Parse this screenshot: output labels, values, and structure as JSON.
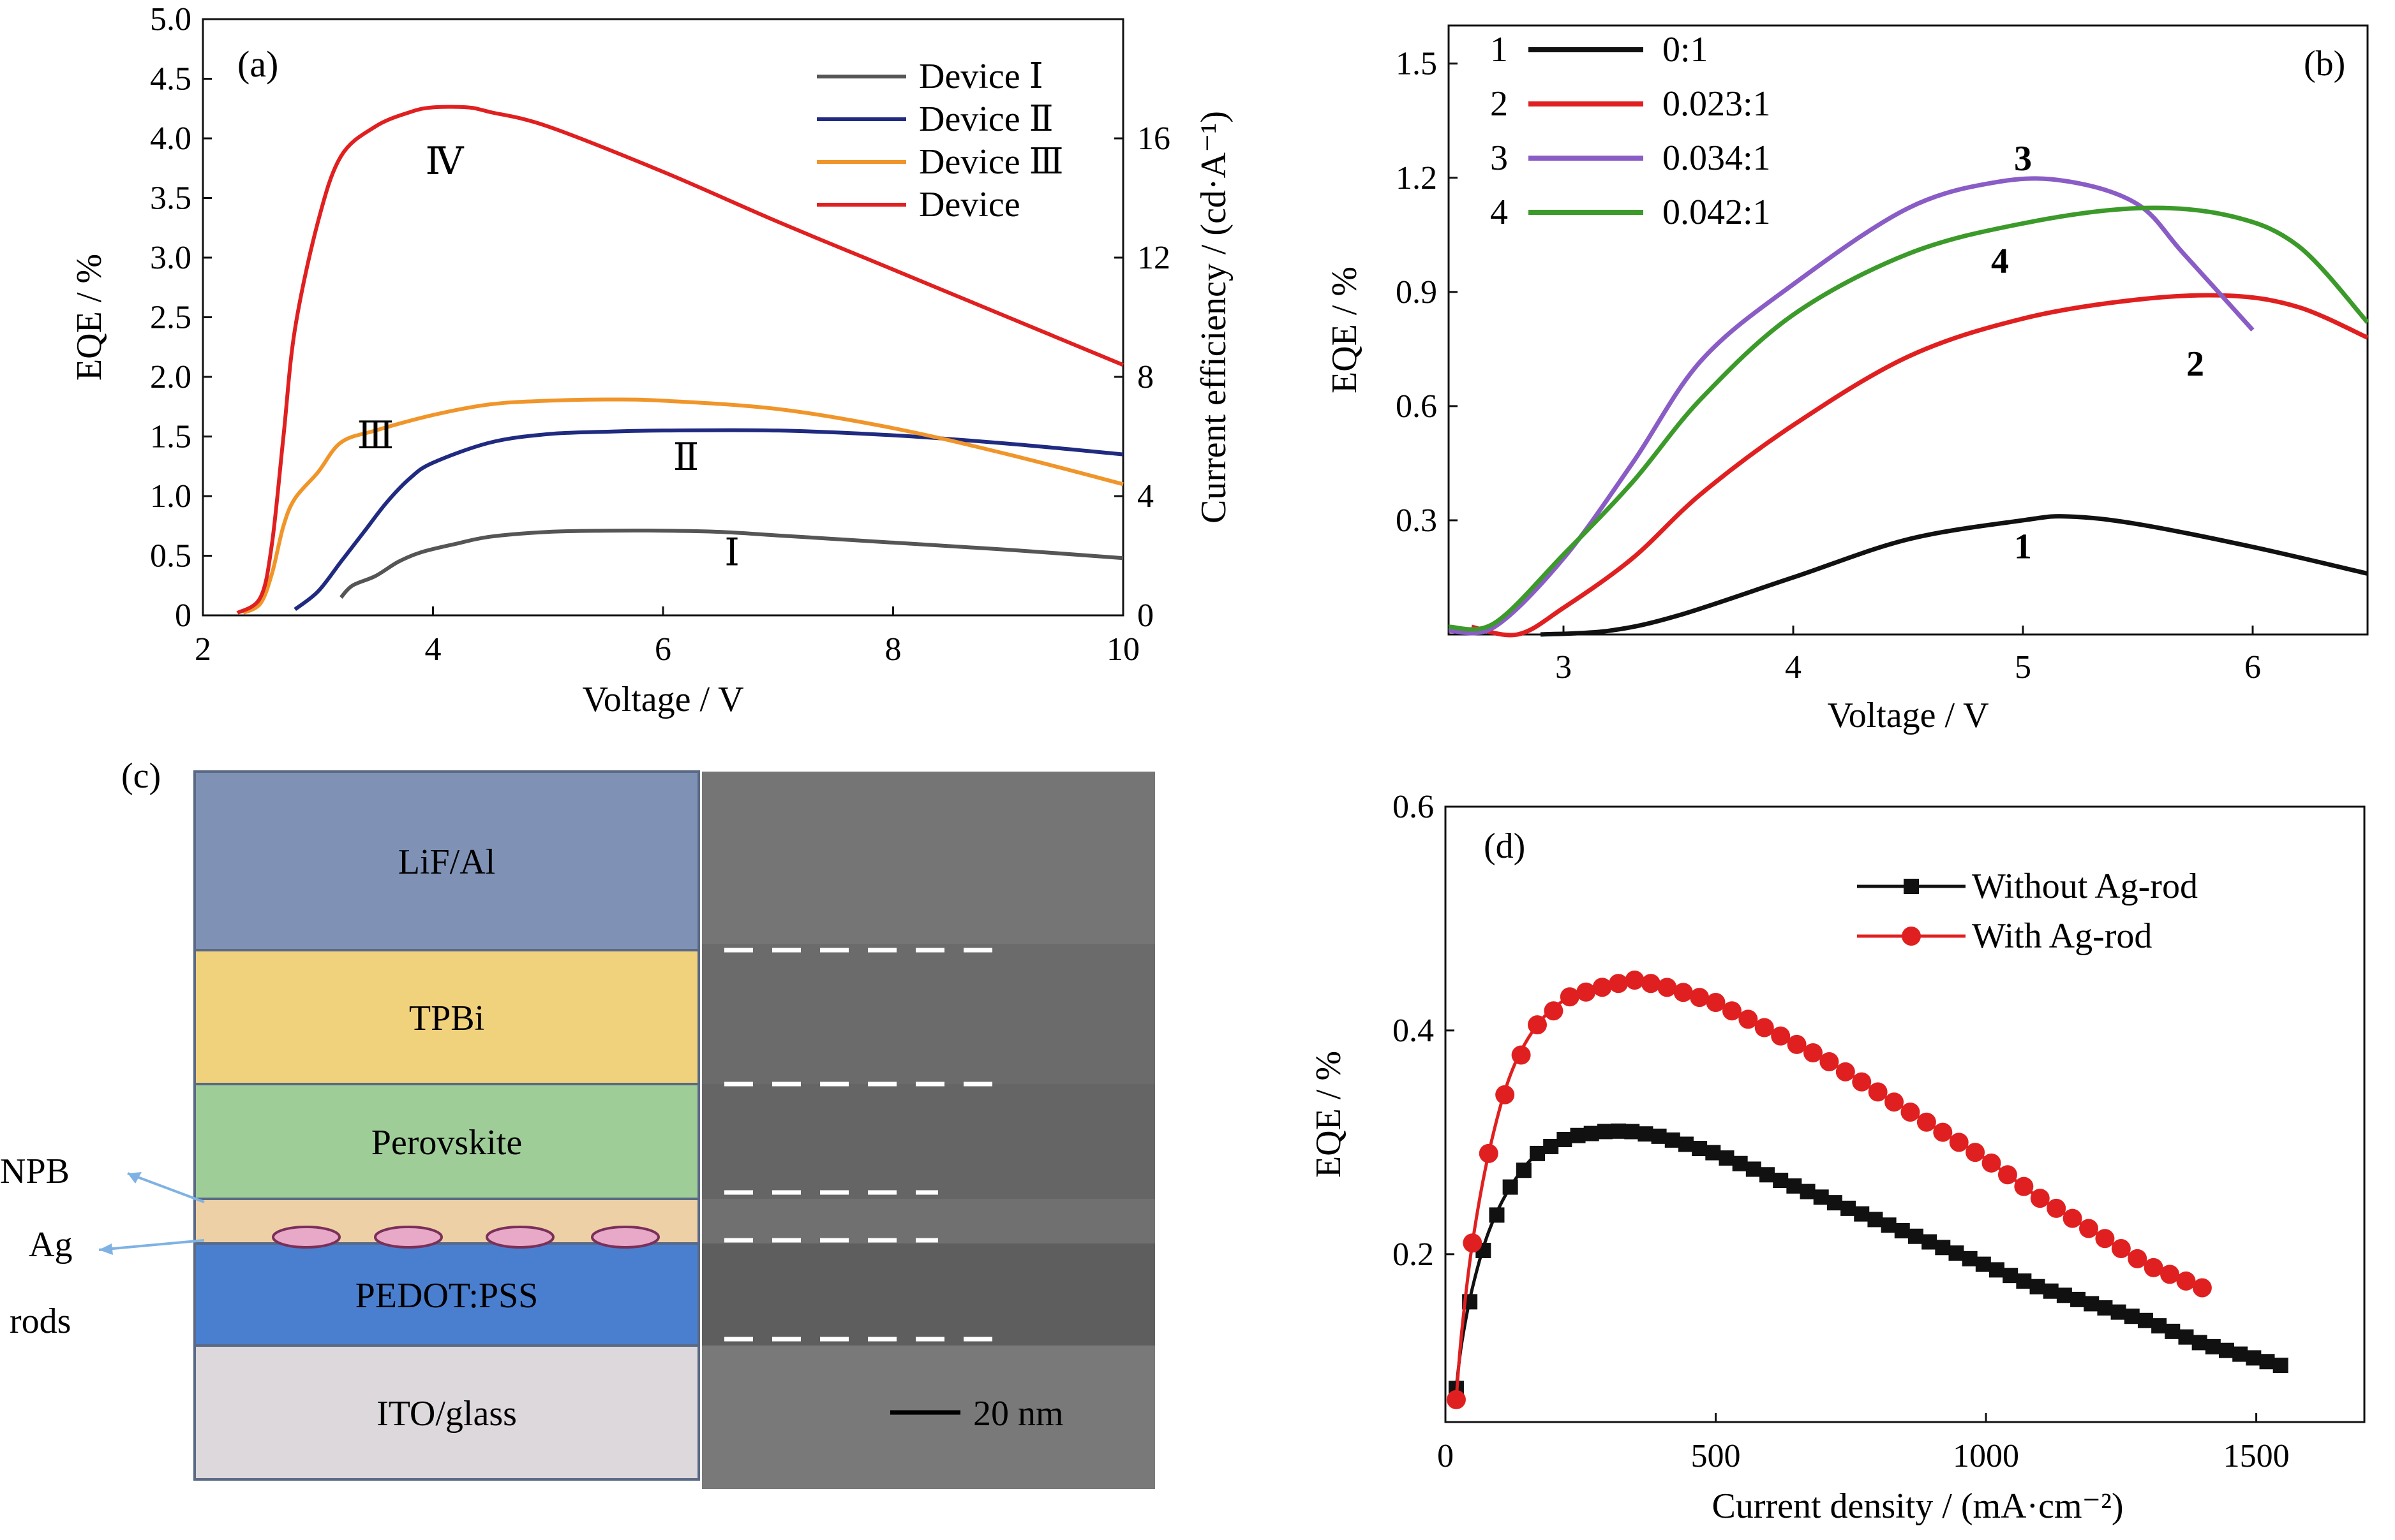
{
  "chart_data": [
    {
      "panel": "(a)",
      "type": "line",
      "xlabel": "Voltage / V",
      "ylabel": "EQE / %",
      "y2label": "Current efficiency / (cd·A⁻¹)",
      "xlim": [
        2,
        10
      ],
      "ylim": [
        0,
        5.0
      ],
      "y2lim": [
        0,
        20
      ],
      "xticks": [
        2,
        4,
        6,
        8,
        10
      ],
      "yticks": [
        "0",
        "0.5",
        "1.0",
        "1.5",
        "2.0",
        "2.5",
        "3.0",
        "3.5",
        "4.0",
        "4.5",
        "5.0"
      ],
      "y2ticks": [
        0,
        4,
        8,
        12,
        16
      ],
      "legend_position": "top-right",
      "series": [
        {
          "name": "Device Ⅰ",
          "label": "Ⅰ",
          "color": "#555555",
          "x": [
            3.2,
            3.3,
            3.5,
            3.7,
            3.9,
            4.2,
            4.5,
            5,
            5.5,
            6,
            6.5,
            7,
            8,
            9,
            10
          ],
          "y": [
            0.15,
            0.25,
            0.33,
            0.45,
            0.53,
            0.6,
            0.66,
            0.7,
            0.71,
            0.71,
            0.7,
            0.67,
            0.61,
            0.55,
            0.48
          ]
        },
        {
          "name": "Device Ⅱ",
          "label": "Ⅱ",
          "color": "#1f2a80",
          "x": [
            2.8,
            3.0,
            3.2,
            3.4,
            3.6,
            3.8,
            4.0,
            4.5,
            5,
            5.5,
            6,
            7,
            8,
            9,
            10
          ],
          "y": [
            0.05,
            0.2,
            0.45,
            0.7,
            0.95,
            1.15,
            1.28,
            1.45,
            1.52,
            1.54,
            1.55,
            1.55,
            1.51,
            1.44,
            1.35
          ]
        },
        {
          "name": "Device Ⅲ",
          "label": "Ⅲ",
          "color": "#f0952a",
          "x": [
            2.35,
            2.5,
            2.6,
            2.7,
            2.8,
            3.0,
            3.2,
            3.5,
            4,
            4.5,
            5,
            5.5,
            6,
            7,
            8,
            9,
            10
          ],
          "y": [
            0.02,
            0.1,
            0.35,
            0.75,
            0.98,
            1.2,
            1.45,
            1.55,
            1.68,
            1.77,
            1.8,
            1.81,
            1.8,
            1.73,
            1.57,
            1.35,
            1.1
          ]
        },
        {
          "name": "Device",
          "label": "Ⅳ",
          "color": "#e02020",
          "x": [
            2.3,
            2.5,
            2.6,
            2.7,
            2.8,
            3.0,
            3.2,
            3.5,
            3.8,
            4.0,
            4.3,
            4.5,
            5,
            6,
            7,
            8,
            9,
            10
          ],
          "y": [
            0.02,
            0.15,
            0.6,
            1.5,
            2.4,
            3.3,
            3.85,
            4.1,
            4.22,
            4.26,
            4.26,
            4.22,
            4.1,
            3.72,
            3.3,
            2.9,
            2.5,
            2.1
          ]
        }
      ]
    },
    {
      "panel": "(b)",
      "type": "line",
      "xlabel": "Voltage / V",
      "ylabel": "EQE / %",
      "xlim": [
        2.5,
        6.5
      ],
      "ylim": [
        0,
        1.6
      ],
      "xticks": [
        3,
        4,
        5,
        6
      ],
      "yticks": [
        "0.3",
        "0.6",
        "0.9",
        "1.2",
        "1.5"
      ],
      "legend_position": "top-left",
      "series": [
        {
          "name": "0:1",
          "num": "1",
          "color": "#111111",
          "x": [
            2.9,
            3.2,
            3.5,
            4.0,
            4.5,
            5.0,
            5.2,
            5.5,
            6.0,
            6.5
          ],
          "y": [
            0,
            0.01,
            0.05,
            0.15,
            0.25,
            0.3,
            0.31,
            0.29,
            0.23,
            0.16
          ]
        },
        {
          "name": "0.023:1",
          "num": "2",
          "color": "#e02020",
          "x": [
            2.6,
            2.8,
            3.0,
            3.3,
            3.6,
            4.0,
            4.5,
            5.0,
            5.5,
            5.9,
            6.2,
            6.5
          ],
          "y": [
            0.02,
            0.0,
            0.07,
            0.2,
            0.37,
            0.55,
            0.73,
            0.83,
            0.88,
            0.89,
            0.86,
            0.78
          ]
        },
        {
          "name": "0.034:1",
          "num": "3",
          "color": "#8a5cc6",
          "x": [
            2.5,
            2.7,
            3.0,
            3.3,
            3.6,
            4.0,
            4.5,
            4.9,
            5.2,
            5.5,
            5.7,
            6.0
          ],
          "y": [
            0.01,
            0.02,
            0.2,
            0.45,
            0.72,
            0.92,
            1.12,
            1.19,
            1.19,
            1.13,
            1.0,
            0.8
          ]
        },
        {
          "name": "0.042:1",
          "num": "4",
          "color": "#3c9a2a",
          "x": [
            2.5,
            2.7,
            3.0,
            3.3,
            3.6,
            4.0,
            4.5,
            5.0,
            5.5,
            5.9,
            6.2,
            6.5
          ],
          "y": [
            0.02,
            0.03,
            0.21,
            0.4,
            0.62,
            0.84,
            1.0,
            1.08,
            1.12,
            1.1,
            1.02,
            0.82
          ]
        }
      ]
    },
    {
      "panel": "(d)",
      "type": "line",
      "xlabel": "Current density / (mA·cm⁻²)",
      "ylabel": "EQE / %",
      "xlim": [
        0,
        1700
      ],
      "ylim": [
        0.05,
        0.6
      ],
      "xticks": [
        0,
        500,
        1000,
        1500
      ],
      "yticks": [
        "0.2",
        "0.4",
        "0.6"
      ],
      "legend_position": "top-right",
      "series": [
        {
          "name": "Without Ag-rod",
          "color": "#111111",
          "marker": "square",
          "x": [
            20,
            30,
            50,
            80,
            120,
            170,
            230,
            300,
            340,
            400,
            500,
            600,
            700,
            800,
            900,
            1000,
            1100,
            1200,
            1300,
            1400,
            1550
          ],
          "y": [
            0.08,
            0.12,
            0.17,
            0.22,
            0.26,
            0.29,
            0.305,
            0.31,
            0.31,
            0.305,
            0.29,
            0.27,
            0.25,
            0.23,
            0.21,
            0.19,
            0.17,
            0.155,
            0.14,
            0.12,
            0.1
          ]
        },
        {
          "name": "With Ag-rod",
          "color": "#e02020",
          "marker": "circle",
          "x": [
            20,
            30,
            50,
            80,
            120,
            170,
            230,
            300,
            350,
            400,
            500,
            600,
            700,
            800,
            900,
            1000,
            1100,
            1200,
            1300,
            1400
          ],
          "y": [
            0.07,
            0.13,
            0.21,
            0.29,
            0.36,
            0.405,
            0.43,
            0.44,
            0.445,
            0.44,
            0.425,
            0.4,
            0.375,
            0.345,
            0.315,
            0.285,
            0.25,
            0.22,
            0.19,
            0.17
          ]
        }
      ]
    }
  ],
  "panel_c": {
    "label": "(c)",
    "layers": [
      "LiF/Al",
      "TPBi",
      "Perovskite",
      "PEDOT:PSS",
      "ITO/glass"
    ],
    "colors": [
      "#7f92b6",
      "#f1d27c",
      "#9fcd98",
      "#d9963a",
      "#4a7fd0",
      "#ddd8db"
    ],
    "side_labels": {
      "npb": "NPB",
      "ag": "Ag",
      "rods": "rods"
    },
    "scale_bar": "20 nm"
  }
}
